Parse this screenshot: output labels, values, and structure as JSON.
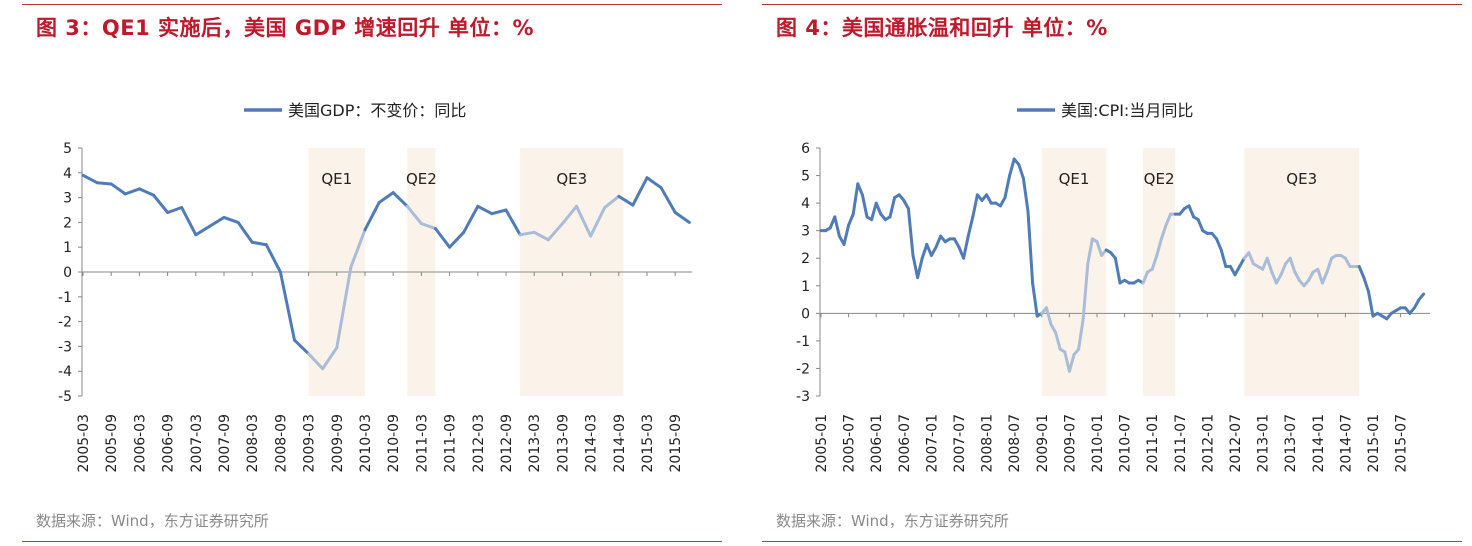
{
  "left": {
    "title": "图 3：QE1 实施后，美国 GDP 增速回升  单位：%",
    "source": "数据来源：Wind，东方证券研究所"
  },
  "right": {
    "title": "图 4：美国通胀温和回升  单位：%",
    "source": "数据来源：Wind，东方证券研究所"
  },
  "colors": {
    "line": "#4f7cb8",
    "line_faded": "#a9bcd8",
    "shade": "#fbf3ea",
    "title": "#c0192b",
    "rule": "#c0392b"
  },
  "chart_data": [
    {
      "type": "line",
      "legend_position": "top-center",
      "grid": false,
      "ylim": [
        -5,
        5
      ],
      "yticks": [
        "5",
        "4",
        "3",
        "2",
        "1",
        "0",
        "-1",
        "-2",
        "-3",
        "-4",
        "-5"
      ],
      "xtick_labels": [
        "2005-03",
        "2005-09",
        "2006-03",
        "2006-09",
        "2007-03",
        "2007-09",
        "2008-03",
        "2008-09",
        "2009-03",
        "2009-09",
        "2010-03",
        "2010-09",
        "2011-03",
        "2011-09",
        "2012-03",
        "2012-09",
        "2013-03",
        "2013-09",
        "2014-03",
        "2014-09",
        "2015-03",
        "2015-09"
      ],
      "series": [
        {
          "name": "美国GDP：不变价：同比",
          "x": [
            "2005-03",
            "2005-06",
            "2005-09",
            "2005-12",
            "2006-03",
            "2006-06",
            "2006-09",
            "2006-12",
            "2007-03",
            "2007-06",
            "2007-09",
            "2007-12",
            "2008-03",
            "2008-06",
            "2008-09",
            "2008-12",
            "2009-03",
            "2009-06",
            "2009-09",
            "2009-12",
            "2010-03",
            "2010-06",
            "2010-09",
            "2010-12",
            "2011-03",
            "2011-06",
            "2011-09",
            "2011-12",
            "2012-03",
            "2012-06",
            "2012-09",
            "2012-12",
            "2013-03",
            "2013-06",
            "2013-09",
            "2013-12",
            "2014-03",
            "2014-06",
            "2014-09",
            "2014-12",
            "2015-03",
            "2015-06",
            "2015-09",
            "2015-12"
          ],
          "values": [
            3.9,
            3.6,
            3.55,
            3.15,
            3.35,
            3.1,
            2.4,
            2.6,
            1.5,
            1.85,
            2.2,
            2.0,
            1.2,
            1.1,
            0.0,
            -2.75,
            -3.3,
            -3.9,
            -3.05,
            0.2,
            1.7,
            2.8,
            3.2,
            2.65,
            1.95,
            1.75,
            1.0,
            1.6,
            2.65,
            2.35,
            2.5,
            1.5,
            1.6,
            1.3,
            1.95,
            2.65,
            1.45,
            2.6,
            3.05,
            2.7,
            3.8,
            3.4,
            2.4,
            2.0
          ]
        }
      ],
      "shaded_periods": [
        {
          "label": "QE1",
          "from": "2009-03",
          "to": "2010-03"
        },
        {
          "label": "QE2",
          "from": "2010-12",
          "to": "2011-06"
        },
        {
          "label": "QE3",
          "from": "2012-12",
          "to": "2014-10"
        }
      ]
    },
    {
      "type": "line",
      "legend_position": "top-center",
      "grid": false,
      "ylim": [
        -3,
        6
      ],
      "yticks": [
        "6",
        "5",
        "4",
        "3",
        "2",
        "1",
        "0",
        "-1",
        "-2",
        "-3"
      ],
      "xtick_labels": [
        "2005-01",
        "2005-07",
        "2006-01",
        "2006-07",
        "2007-01",
        "2007-07",
        "2008-01",
        "2008-07",
        "2009-01",
        "2009-07",
        "2010-01",
        "2010-07",
        "2011-01",
        "2011-07",
        "2012-01",
        "2012-07",
        "2013-01",
        "2013-07",
        "2014-01",
        "2014-07",
        "2015-01",
        "2015-07"
      ],
      "series": [
        {
          "name": "美国:CPI:当月同比",
          "x_start": "2005-01",
          "x_end": "2015-12",
          "values": [
            3.0,
            3.0,
            3.1,
            3.5,
            2.8,
            2.5,
            3.2,
            3.6,
            4.7,
            4.3,
            3.5,
            3.4,
            4.0,
            3.6,
            3.4,
            3.5,
            4.2,
            4.3,
            4.1,
            3.8,
            2.1,
            1.3,
            2.0,
            2.5,
            2.1,
            2.4,
            2.8,
            2.6,
            2.7,
            2.7,
            2.4,
            2.0,
            2.8,
            3.5,
            4.3,
            4.1,
            4.3,
            4.0,
            4.0,
            3.9,
            4.2,
            5.0,
            5.6,
            5.4,
            4.9,
            3.7,
            1.1,
            -0.1,
            0.0,
            0.2,
            -0.4,
            -0.7,
            -1.3,
            -1.4,
            -2.1,
            -1.5,
            -1.3,
            -0.2,
            1.8,
            2.7,
            2.6,
            2.1,
            2.3,
            2.2,
            2.0,
            1.1,
            1.2,
            1.1,
            1.1,
            1.2,
            1.1,
            1.5,
            1.6,
            2.1,
            2.7,
            3.2,
            3.6,
            3.6,
            3.6,
            3.8,
            3.9,
            3.5,
            3.4,
            3.0,
            2.9,
            2.9,
            2.7,
            2.3,
            1.7,
            1.7,
            1.4,
            1.7,
            2.0,
            2.2,
            1.8,
            1.7,
            1.6,
            2.0,
            1.5,
            1.1,
            1.4,
            1.8,
            2.0,
            1.5,
            1.2,
            1.0,
            1.2,
            1.5,
            1.6,
            1.1,
            1.5,
            2.0,
            2.1,
            2.1,
            2.0,
            1.7,
            1.7,
            1.7,
            1.3,
            0.8,
            -0.1,
            0.0,
            -0.1,
            -0.2,
            0.0,
            0.1,
            0.2,
            0.2,
            0.0,
            0.2,
            0.5,
            0.7
          ]
        }
      ],
      "shaded_periods": [
        {
          "label": "QE1",
          "from": "2009-01",
          "to": "2010-03"
        },
        {
          "label": "QE2",
          "from": "2010-11",
          "to": "2011-06"
        },
        {
          "label": "QE3",
          "from": "2012-09",
          "to": "2014-10"
        }
      ]
    }
  ]
}
